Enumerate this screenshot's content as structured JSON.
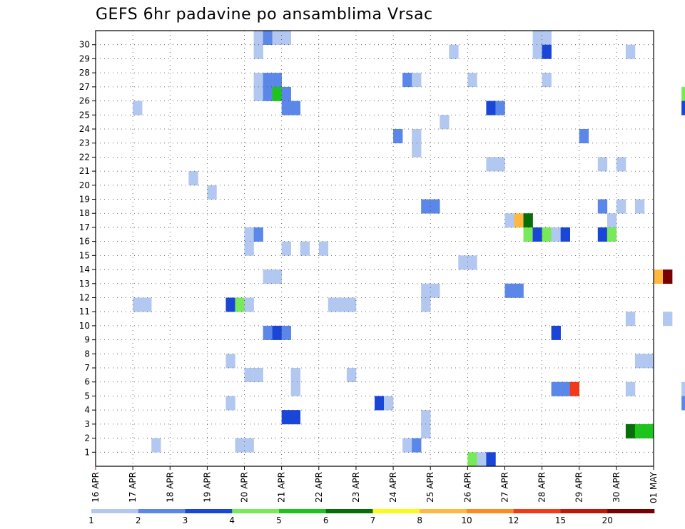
{
  "chart_data": {
    "type": "heatmap",
    "title": "GEFS 6hr padavine po ansamblima Vrsac",
    "xlabel": "",
    "ylabel": "",
    "x_tick_labels": [
      "16 APR",
      "17 APR",
      "18 APR",
      "19 APR",
      "20 APR",
      "21 APR",
      "22 APR",
      "23 APR",
      "24 APR",
      "25 APR",
      "26 APR",
      "27 APR",
      "28 APR",
      "29 APR",
      "30 APR",
      "01 MAY"
    ],
    "y_tick_labels": [
      "1",
      "2",
      "3",
      "4",
      "5",
      "6",
      "7",
      "8",
      "9",
      "10",
      "11",
      "12",
      "13",
      "14",
      "15",
      "16",
      "17",
      "18",
      "19",
      "20",
      "21",
      "22",
      "23",
      "24",
      "25",
      "26",
      "27",
      "28",
      "29",
      "30"
    ],
    "time_steps_per_day": 4,
    "grid": true,
    "legend": {
      "placement": "bottom",
      "labels": [
        "1",
        "2",
        "3",
        "4",
        "5",
        "6",
        "7",
        "8",
        "10",
        "12",
        "15",
        "20"
      ],
      "colors": [
        "#b3c8f0",
        "#5b88e8",
        "#1a46d8",
        "#78ea5a",
        "#1cc41c",
        "#086e08",
        "#fdfa1a",
        "#ffb840",
        "#ff8a20",
        "#f03a1a",
        "#c01808",
        "#780000"
      ]
    },
    "color_levels": [
      {
        "min": 1,
        "color": "#b3c8f0"
      },
      {
        "min": 2,
        "color": "#5b88e8"
      },
      {
        "min": 3,
        "color": "#1a46d8"
      },
      {
        "min": 4,
        "color": "#78ea5a"
      },
      {
        "min": 5,
        "color": "#1cc41c"
      },
      {
        "min": 6,
        "color": "#086e08"
      },
      {
        "min": 7,
        "color": "#fdfa1a"
      },
      {
        "min": 8,
        "color": "#ffb840"
      },
      {
        "min": 10,
        "color": "#ff8a20"
      },
      {
        "min": 12,
        "color": "#f03a1a"
      },
      {
        "min": 15,
        "color": "#c01808"
      },
      {
        "min": 20,
        "color": "#780000"
      }
    ],
    "series": [
      {
        "member": 30,
        "values": {
          "17": 1,
          "18": 2,
          "19": 1,
          "20": 1,
          "47": 1,
          "48": 1
        }
      },
      {
        "member": 29,
        "values": {
          "17": 1,
          "38": 1,
          "47": 1,
          "48": 3,
          "57": 1,
          "72": 2,
          "75": 2,
          "77": 1,
          "78": 3,
          "79": 2,
          "80": 2,
          "81": 1,
          "82": 4,
          "83": 4,
          "84": 15,
          "85": 12,
          "86": 5,
          "100": 2,
          "101": 1,
          "113": 1,
          "123": 3,
          "124": 1,
          "126": 2,
          "127": 8,
          "128": 6,
          "129": 1,
          "130": 5,
          "131": 5,
          "132": 2,
          "133": 2,
          "134": 2
        }
      },
      {
        "member": 28,
        "values": {
          "66": 3,
          "116": 12,
          "117": 6,
          "118": 3,
          "135": 8
        }
      },
      {
        "member": 27,
        "values": {
          "17": 1,
          "18": 2,
          "19": 2,
          "33": 2,
          "34": 1,
          "40": 1,
          "48": 1,
          "65": 5,
          "66": 7,
          "67": 1,
          "68": 6,
          "69": 3,
          "100": 2,
          "101": 6,
          "102": 1,
          "117": 2,
          "118": 2,
          "119": 5,
          "120": 3,
          "124": 2
        }
      },
      {
        "member": 26,
        "values": {
          "17": 1,
          "18": 2,
          "19": 5,
          "20": 2,
          "63": 4,
          "64": 5,
          "107": 4,
          "108": 4
        }
      },
      {
        "member": 25,
        "values": {
          "4": 1,
          "20": 2,
          "21": 2,
          "42": 3,
          "43": 2,
          "63": 3,
          "64": 1,
          "65": 8,
          "66": 3,
          "68": 1,
          "69": 1,
          "82": 1,
          "101": 1,
          "102": 8,
          "103": 4,
          "126": 4,
          "127": 5
        }
      },
      {
        "member": 24,
        "values": {
          "37": 1,
          "108": 1,
          "109": 2,
          "110": 4,
          "111": 6,
          "112": 1
        }
      },
      {
        "member": 23,
        "values": {
          "32": 2,
          "34": 1,
          "52": 2,
          "65": 15,
          "66": 10,
          "67": 1,
          "82": 10,
          "92": 3,
          "93": 2,
          "121": 1,
          "122": 4,
          "123": 6
        }
      },
      {
        "member": 22,
        "values": {
          "34": 1,
          "74": 3,
          "81": 1,
          "82": 1,
          "94": 1,
          "106": 2,
          "107": 3,
          "108": 2,
          "110": 3
        }
      },
      {
        "member": 21,
        "values": {
          "42": 1,
          "43": 1,
          "54": 1,
          "56": 1,
          "64": 2,
          "65": 4,
          "69": 3,
          "86": 3,
          "111": 1
        }
      },
      {
        "member": 20,
        "values": {
          "10": 1,
          "122": 1
        }
      },
      {
        "member": 19,
        "values": {
          "12": 1,
          "69": 8,
          "70": 2,
          "76": 3,
          "81": 1,
          "82": 1,
          "115": 2,
          "117": 2,
          "118": 3,
          "120": 1,
          "122": 3,
          "123": 1
        }
      },
      {
        "member": 18,
        "values": {
          "35": 2,
          "36": 2,
          "54": 2,
          "56": 1,
          "58": 1,
          "69": 3,
          "70": 1,
          "71": 7,
          "72": 3,
          "76": 1,
          "85": 3,
          "86": 8,
          "89": 4,
          "90": 4,
          "91": 4,
          "122": 1,
          "123": 1
        }
      },
      {
        "member": 17,
        "values": {
          "44": 1,
          "45": 8,
          "46": 6,
          "55": 1,
          "74": 1,
          "117": 2,
          "118": 3,
          "119": 2
        }
      },
      {
        "member": 16,
        "values": {
          "16": 1,
          "17": 2,
          "46": 4,
          "47": 3,
          "48": 4,
          "49": 1,
          "50": 3,
          "54": 3,
          "55": 4,
          "77": 1,
          "123": 1
        }
      },
      {
        "member": 15,
        "values": {
          "16": 1,
          "20": 1,
          "22": 1,
          "24": 1,
          "79": 1,
          "116": 5,
          "117": 10,
          "120": 10,
          "121": 8,
          "122": 2,
          "123": 2,
          "124": 5
        }
      },
      {
        "member": 14,
        "values": {
          "39": 1,
          "40": 1,
          "78": 1,
          "79": 10,
          "80": 2,
          "123": 1,
          "136": 1
        }
      },
      {
        "member": 13,
        "values": {
          "18": 1,
          "19": 1,
          "60": 8,
          "61": 20,
          "79": 1,
          "80": 3,
          "84": 2,
          "85": 2,
          "86": 6,
          "87": 5,
          "88": 2,
          "136": 1,
          "137": 2
        }
      },
      {
        "member": 12,
        "values": {
          "35": 1,
          "36": 1,
          "44": 2,
          "45": 2,
          "88": 3,
          "92": 6,
          "93": 2,
          "94": 1
        }
      },
      {
        "member": 11,
        "values": {
          "4": 1,
          "5": 1,
          "14": 3,
          "15": 4,
          "16": 1,
          "25": 1,
          "26": 1,
          "27": 1,
          "35": 1,
          "72": 1,
          "73": 2,
          "75": 1,
          "78": 1,
          "79": 3,
          "80": 10,
          "84": 1,
          "117": 10,
          "118": 3,
          "138": 3,
          "139": 4
        }
      },
      {
        "member": 10,
        "values": {
          "57": 1,
          "61": 1,
          "70": 1,
          "73": 8,
          "77": 1,
          "78": 1,
          "84": 1,
          "85": 1,
          "87": 2
        }
      },
      {
        "member": 9,
        "values": {
          "18": 2,
          "19": 3,
          "20": 2,
          "49": 3,
          "82": 1,
          "83": 3
        }
      },
      {
        "member": 8,
        "values": {
          "65": 1,
          "89": 12,
          "90": 20,
          "91": 2
        }
      },
      {
        "member": 7,
        "values": {
          "14": 1,
          "58": 1,
          "59": 1,
          "80": 1,
          "115": 2,
          "116": 7,
          "117": 3,
          "118": 2
        }
      },
      {
        "member": 6,
        "values": {
          "16": 1,
          "17": 1,
          "21": 1,
          "27": 1,
          "75": 7,
          "79": 1,
          "80": 1,
          "121": 1
        }
      },
      {
        "member": 5,
        "values": {
          "21": 1,
          "49": 2,
          "50": 2,
          "51": 12,
          "57": 1,
          "63": 1,
          "64": 2,
          "78": 2,
          "79": 6,
          "80": 1,
          "123": 3,
          "125": 2,
          "126": 3
        }
      },
      {
        "member": 4,
        "values": {
          "14": 1,
          "30": 3,
          "31": 1,
          "63": 2,
          "64": 8,
          "65": 1,
          "66": 2,
          "67": 2,
          "131": 1
        }
      },
      {
        "member": 3,
        "values": {
          "20": 3,
          "21": 3,
          "35": 1,
          "66": 7,
          "67": 7,
          "131": 3,
          "132": 4
        }
      },
      {
        "member": 2,
        "values": {
          "35": 1,
          "57": 6,
          "58": 5,
          "59": 5,
          "101": 5,
          "102": 1,
          "111": 1,
          "112": 5,
          "115": 2,
          "116": 5,
          "130": 1,
          "131": 1
        }
      },
      {
        "member": 1,
        "values": {
          "6": 1,
          "15": 1,
          "16": 1,
          "33": 1,
          "34": 2,
          "70": 1,
          "71": 1,
          "90": 8,
          "91": 4,
          "127": 2,
          "128": 2,
          "129": 4,
          "130": 1
        }
      },
      {
        "member": 0,
        "values": {
          "40": 4,
          "41": 1,
          "42": 3,
          "67": 1,
          "69": 1,
          "101": 2
        }
      }
    ]
  }
}
